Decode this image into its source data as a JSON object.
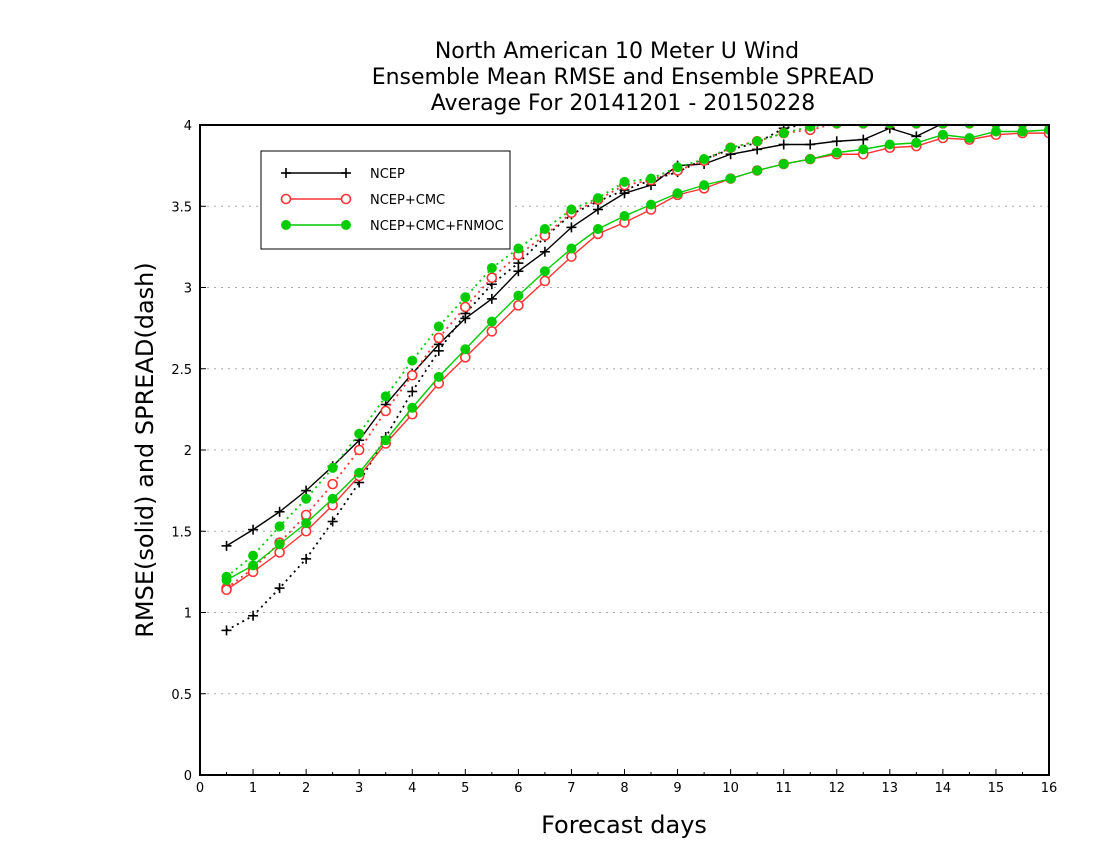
{
  "chart_data": {
    "type": "line",
    "title_lines": [
      "North American 10 Meter U Wind",
      "Ensemble Mean RMSE and Ensemble SPREAD",
      "Average For 20141201 - 20150228"
    ],
    "xlabel": "Forecast days",
    "ylabel": "RMSE(solid) and SPREAD(dash)",
    "xlim": [
      0,
      16
    ],
    "ylim": [
      0,
      4
    ],
    "xticks": [
      0,
      1,
      2,
      3,
      4,
      5,
      6,
      7,
      8,
      9,
      10,
      11,
      12,
      13,
      14,
      15,
      16
    ],
    "yticks": [
      0,
      0.5,
      1,
      1.5,
      2,
      2.5,
      3,
      3.5,
      4
    ],
    "grid": "horizontal dotted",
    "legend_position": "top-left",
    "x": [
      0.5,
      1,
      1.5,
      2,
      2.5,
      3,
      3.5,
      4,
      4.5,
      5,
      5.5,
      6,
      6.5,
      7,
      7.5,
      8,
      8.5,
      9,
      9.5,
      10,
      10.5,
      11,
      11.5,
      12,
      12.5,
      13,
      13.5,
      14,
      14.5,
      15,
      15.5,
      16
    ],
    "series": [
      {
        "name": "NCEP",
        "color": "#000000",
        "marker": "plus",
        "rmse": [
          1.41,
          1.51,
          1.62,
          1.75,
          1.9,
          2.06,
          2.28,
          2.47,
          2.65,
          2.81,
          2.93,
          3.1,
          3.22,
          3.37,
          3.48,
          3.58,
          3.63,
          3.75,
          3.76,
          3.82,
          3.85,
          3.88,
          3.88,
          3.9,
          3.91,
          3.98,
          3.93,
          4.01,
          4.01,
          4.01,
          4.01,
          4.01
        ],
        "spread": [
          0.89,
          0.98,
          1.15,
          1.33,
          1.56,
          1.8,
          2.08,
          2.36,
          2.61,
          2.84,
          3.02,
          3.15,
          3.31,
          3.45,
          3.53,
          3.6,
          3.66,
          3.71,
          3.79,
          3.85,
          3.89,
          3.98,
          4.01,
          4.01,
          4.01,
          4.01,
          4.01,
          4.01,
          4.01,
          4.01,
          4.01,
          4.01
        ]
      },
      {
        "name": "NCEP+CMC",
        "color": "#ff3333",
        "marker": "open-circle",
        "rmse": [
          1.14,
          1.25,
          1.37,
          1.5,
          1.66,
          1.84,
          2.04,
          2.22,
          2.41,
          2.57,
          2.73,
          2.89,
          3.04,
          3.19,
          3.33,
          3.4,
          3.48,
          3.57,
          3.61,
          3.67,
          3.72,
          3.76,
          3.79,
          3.82,
          3.82,
          3.86,
          3.87,
          3.92,
          3.91,
          3.94,
          3.95,
          3.95
        ],
        "spread": [
          1.15,
          1.27,
          1.43,
          1.6,
          1.79,
          2.0,
          2.24,
          2.46,
          2.69,
          2.88,
          3.06,
          3.2,
          3.32,
          3.46,
          3.54,
          3.63,
          3.66,
          3.72,
          3.78,
          3.86,
          3.9,
          3.95,
          3.97,
          4.01,
          4.01,
          4.01,
          4.01,
          4.01,
          4.01,
          4.01,
          4.01,
          4.01
        ]
      },
      {
        "name": "NCEP+CMC+FNMOC",
        "color": "#00cc00",
        "marker": "filled-circle",
        "rmse": [
          1.2,
          1.29,
          1.42,
          1.55,
          1.7,
          1.86,
          2.06,
          2.26,
          2.45,
          2.62,
          2.79,
          2.95,
          3.1,
          3.24,
          3.36,
          3.44,
          3.51,
          3.58,
          3.63,
          3.67,
          3.72,
          3.76,
          3.79,
          3.83,
          3.85,
          3.88,
          3.89,
          3.94,
          3.92,
          3.96,
          3.96,
          3.97
        ],
        "spread": [
          1.22,
          1.35,
          1.53,
          1.7,
          1.89,
          2.1,
          2.33,
          2.55,
          2.76,
          2.94,
          3.12,
          3.24,
          3.36,
          3.48,
          3.55,
          3.65,
          3.67,
          3.74,
          3.79,
          3.86,
          3.9,
          3.95,
          3.99,
          4.01,
          4.01,
          4.01,
          4.01,
          4.01,
          4.01,
          4.01,
          4.01,
          4.01
        ]
      }
    ]
  }
}
